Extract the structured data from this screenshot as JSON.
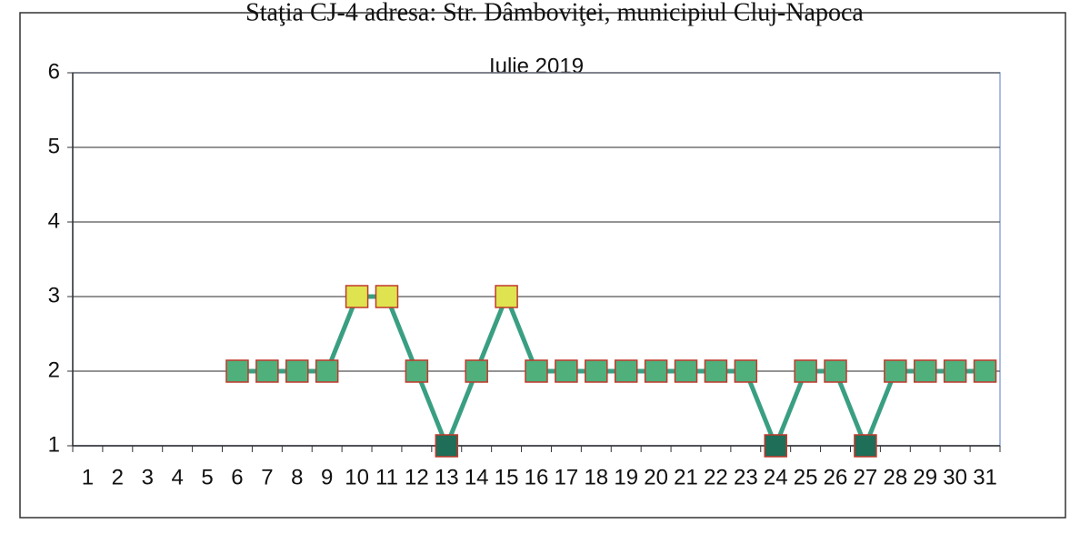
{
  "chart_data": {
    "type": "line",
    "heading": "Staţia CJ-4  adresa: Str. Dâmboviţei, municipiul Cluj-Napoca",
    "title": "Iulie 2019",
    "categories": [
      "1",
      "2",
      "3",
      "4",
      "5",
      "6",
      "7",
      "8",
      "9",
      "10",
      "11",
      "12",
      "13",
      "14",
      "15",
      "16",
      "17",
      "18",
      "19",
      "20",
      "21",
      "22",
      "23",
      "24",
      "25",
      "26",
      "27",
      "28",
      "29",
      "30",
      "31"
    ],
    "series": [
      {
        "color": "#3a9f82",
        "values": [
          null,
          null,
          null,
          null,
          null,
          2,
          2,
          2,
          2,
          3,
          3,
          2,
          1,
          2,
          3,
          2,
          2,
          2,
          2,
          2,
          2,
          2,
          2,
          1,
          2,
          2,
          1,
          2,
          2,
          2,
          2
        ],
        "marker_colors": [
          null,
          null,
          null,
          null,
          null,
          "#4fb07c",
          "#4fb07c",
          "#4fb07c",
          "#4fb07c",
          "#dfe34f",
          "#dfe34f",
          "#4fb07c",
          "#1e6e58",
          "#4fb07c",
          "#dfe34f",
          "#4fb07c",
          "#4fb07c",
          "#4fb07c",
          "#4fb07c",
          "#4fb07c",
          "#4fb07c",
          "#4fb07c",
          "#4fb07c",
          "#1e6e58",
          "#4fb07c",
          "#4fb07c",
          "#1e6e58",
          "#4fb07c",
          "#4fb07c",
          "#4fb07c",
          "#4fb07c"
        ]
      }
    ],
    "ylim": [
      1,
      6
    ],
    "yticks": [
      1,
      2,
      3,
      4,
      5,
      6
    ],
    "grid": true
  }
}
